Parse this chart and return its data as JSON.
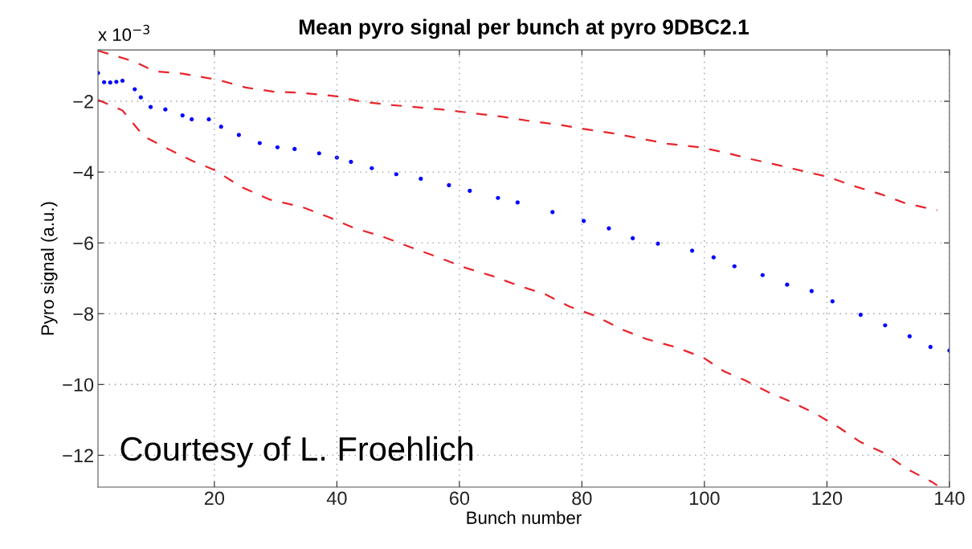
{
  "chart_data": {
    "type": "line",
    "title": "Mean pyro signal per bunch at pyro 9DBC2.1",
    "xlabel": "Bunch number",
    "ylabel": "Pyro signal (a.u.)",
    "annotations": [
      "x 10$^{−3}$",
      "Courtesy of L. Froehlich"
    ],
    "xlim": [
      1,
      140
    ],
    "xticks": [
      20,
      40,
      60,
      80,
      100,
      120,
      140
    ],
    "ylim": [
      -12.9,
      -0.55
    ],
    "yticks": [
      -12,
      -10,
      -8,
      -6,
      -4,
      -2
    ],
    "grid": true,
    "legend": false,
    "series": [
      {
        "type": "scatter",
        "color": "#0000ff",
        "marker": "circle",
        "x": [
          1,
          2,
          3,
          4,
          5,
          7,
          8,
          9.6,
          12,
          14.8,
          16.3,
          19.1,
          21.1,
          24,
          27.4,
          30.3,
          33.1,
          37.1,
          40,
          42.3,
          45.7,
          49.7,
          53.7,
          58.3,
          61.7,
          66.3,
          69.5,
          75.2,
          80.3,
          84.4,
          88.3,
          92.4,
          98,
          101.5,
          104.9,
          109.5,
          113.5,
          117.5,
          120.9,
          125.5,
          129.5,
          133.5,
          136.9,
          140
        ],
        "values": [
          -1.2,
          -1.46,
          -1.47,
          -1.45,
          -1.42,
          -1.66,
          -1.89,
          -2.16,
          -2.23,
          -2.4,
          -2.51,
          -2.51,
          -2.72,
          -2.95,
          -3.18,
          -3.3,
          -3.35,
          -3.47,
          -3.59,
          -3.71,
          -3.89,
          -4.06,
          -4.19,
          -4.37,
          -4.53,
          -4.73,
          -4.86,
          -5.13,
          -5.38,
          -5.59,
          -5.87,
          -6.02,
          -6.22,
          -6.41,
          -6.66,
          -6.91,
          -7.18,
          -7.36,
          -7.65,
          -8.03,
          -8.33,
          -8.64,
          -8.94,
          -9.04
        ]
      },
      {
        "color": "#e8242c",
        "line_style": "dashed",
        "x": [
          1,
          6.8,
          10.2,
          14.8,
          20.5,
          25.1,
          29.7,
          34.2,
          40,
          44,
          48,
          57.1,
          66.7,
          71.2,
          75.8,
          80.3,
          84.9,
          89.5,
          94,
          99.2,
          103.2,
          107.8,
          111.7,
          116.3,
          120.3,
          124.3,
          128.9,
          132.8,
          138
        ],
        "values": [
          -0.57,
          -0.87,
          -1.15,
          -1.22,
          -1.39,
          -1.61,
          -1.73,
          -1.76,
          -1.86,
          -2.01,
          -2.09,
          -2.23,
          -2.43,
          -2.55,
          -2.65,
          -2.78,
          -2.9,
          -3.05,
          -3.2,
          -3.3,
          -3.44,
          -3.64,
          -3.79,
          -3.98,
          -4.14,
          -4.39,
          -4.63,
          -4.88,
          -5.08
        ]
      },
      {
        "color": "#e8242c",
        "line_style": "dashed",
        "x": [
          1,
          5,
          8.5,
          12.5,
          16.5,
          20,
          24.5,
          29.1,
          34.2,
          38.8,
          42.8,
          47.4,
          52,
          56.6,
          61.1,
          65.3,
          69.5,
          74,
          78,
          82,
          86.6,
          90.6,
          95.2,
          99.8,
          103.2,
          106.6,
          110.6,
          114,
          118.1,
          122,
          125.5,
          129.5,
          132.8,
          137.1,
          138
        ],
        "values": [
          -1.96,
          -2.26,
          -2.99,
          -3.35,
          -3.69,
          -3.94,
          -4.43,
          -4.78,
          -4.98,
          -5.28,
          -5.58,
          -5.82,
          -6.12,
          -6.41,
          -6.71,
          -6.93,
          -7.2,
          -7.45,
          -7.8,
          -8.05,
          -8.45,
          -8.72,
          -8.94,
          -9.24,
          -9.63,
          -9.88,
          -10.23,
          -10.48,
          -10.82,
          -11.22,
          -11.63,
          -11.95,
          -12.36,
          -12.75,
          -12.85
        ]
      }
    ]
  }
}
